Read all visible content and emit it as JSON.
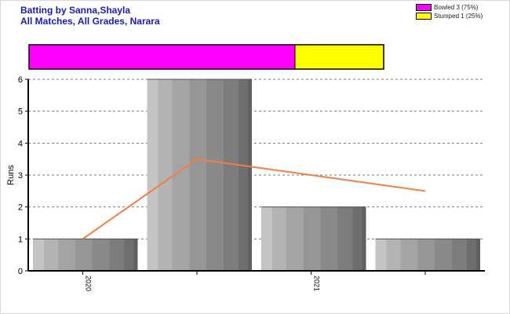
{
  "title_line1": "Batting by Sanna,Shayla",
  "title_line2": "All Matches, All Grades, Narara",
  "dismissal_legend": [
    {
      "label": "Bowled 3 (75%)",
      "color": "#ff00ff",
      "fraction": 0.75
    },
    {
      "label": "Stumped 1 (25%)",
      "color": "#ffff00",
      "fraction": 0.25
    }
  ],
  "chart_data": {
    "type": "bar",
    "ylabel": "Runs",
    "ylim": [
      0,
      6
    ],
    "yticks": [
      0,
      1,
      2,
      3,
      4,
      5,
      6
    ],
    "grid": true,
    "bar_values": [
      1,
      6,
      2,
      1
    ],
    "x_tick_labels": [
      "2020",
      "",
      "2021",
      ""
    ],
    "line_series": {
      "color": "#f08040",
      "values": [
        1,
        3.5,
        3,
        2.5
      ]
    }
  }
}
